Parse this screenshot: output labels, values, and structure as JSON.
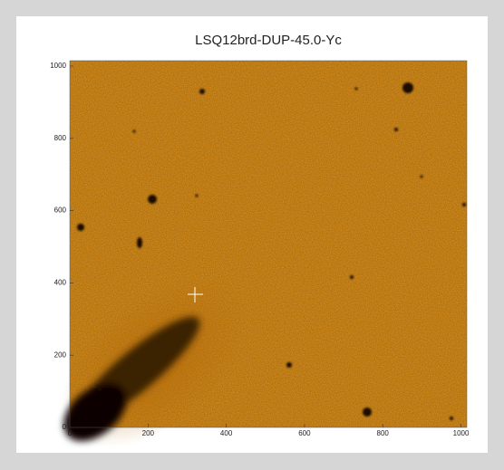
{
  "chart_data": {
    "type": "image",
    "title": "LSQ12brd-DUP-45.0-Yc",
    "xlim": [
      0,
      1015
    ],
    "ylim": [
      0,
      1015
    ],
    "xticks": [
      0,
      200,
      400,
      600,
      800,
      1000
    ],
    "yticks": [
      0,
      200,
      400,
      600,
      800,
      1000
    ]
  }
}
